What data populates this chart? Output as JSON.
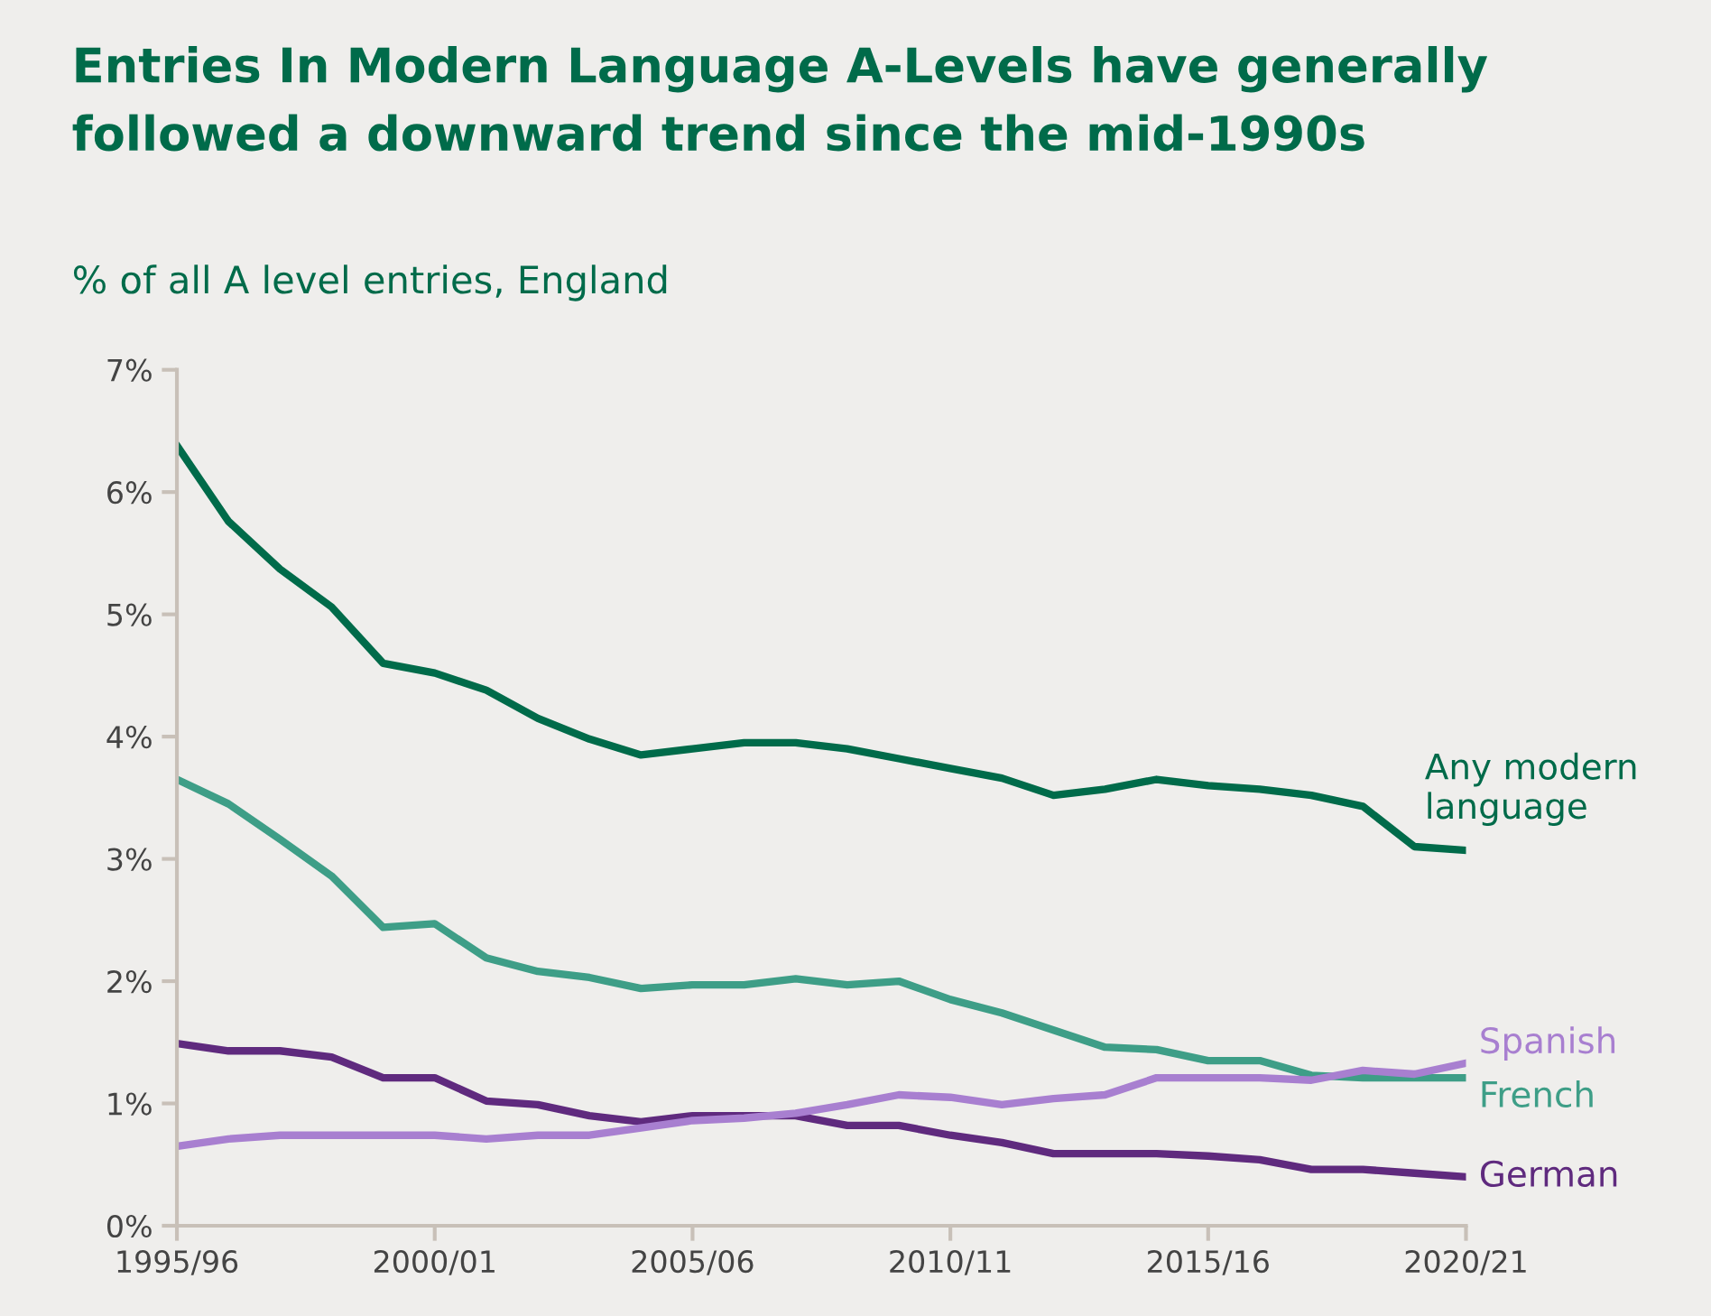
{
  "chart_data": {
    "type": "line",
    "title": "Entries In Modern Language A-Levels have generally followed a downward trend since the mid-1990s",
    "subtitle": "% of all A level entries, England",
    "categories": [
      "1995/96",
      null,
      null,
      null,
      null,
      "2000/01",
      null,
      null,
      null,
      null,
      "2005/06",
      null,
      null,
      null,
      null,
      "2010/11",
      null,
      null,
      null,
      null,
      "2015/16",
      null,
      null,
      null,
      null,
      "2020/21"
    ],
    "series": [
      {
        "name": "Any modern\nlanguage",
        "color": "#006b4a",
        "values": [
          6.38,
          5.76,
          5.37,
          5.06,
          4.6,
          4.52,
          4.38,
          4.15,
          3.98,
          3.85,
          3.9,
          3.95,
          3.95,
          3.9,
          3.82,
          3.74,
          3.66,
          3.52,
          3.57,
          3.65,
          3.6,
          3.57,
          3.52,
          3.43,
          3.1,
          3.07
        ]
      },
      {
        "name": "French",
        "color": "#3e9e87",
        "values": [
          3.65,
          3.45,
          3.16,
          2.86,
          2.44,
          2.47,
          2.19,
          2.08,
          2.03,
          1.94,
          1.97,
          1.97,
          2.02,
          1.97,
          2.0,
          1.85,
          1.74,
          1.6,
          1.46,
          1.44,
          1.35,
          1.35,
          1.23,
          1.21,
          1.21,
          1.21
        ]
      },
      {
        "name": "German",
        "color": "#5f2a7e",
        "values": [
          1.49,
          1.43,
          1.43,
          1.38,
          1.21,
          1.21,
          1.02,
          0.99,
          0.9,
          0.85,
          0.9,
          0.9,
          0.9,
          0.82,
          0.82,
          0.74,
          0.68,
          0.59,
          0.59,
          0.59,
          0.57,
          0.54,
          0.46,
          0.46,
          0.43,
          0.4
        ]
      },
      {
        "name": "Spanish",
        "color": "#a87fd0",
        "values": [
          0.65,
          0.71,
          0.74,
          0.74,
          0.74,
          0.74,
          0.71,
          0.74,
          0.74,
          0.8,
          0.86,
          0.88,
          0.92,
          0.99,
          1.07,
          1.05,
          0.99,
          1.04,
          1.07,
          1.21,
          1.21,
          1.21,
          1.19,
          1.27,
          1.24,
          1.33
        ]
      }
    ],
    "ylim": [
      0,
      7
    ],
    "yticks": [
      {
        "value": 0,
        "label": "0%"
      },
      {
        "value": 1,
        "label": "1%"
      },
      {
        "value": 2,
        "label": "2%"
      },
      {
        "value": 3,
        "label": "3%"
      },
      {
        "value": 4,
        "label": "4%"
      },
      {
        "value": 5,
        "label": "5%"
      },
      {
        "value": 6,
        "label": "6%"
      },
      {
        "value": 7,
        "label": "7%"
      }
    ],
    "grid": false,
    "legend": false,
    "marker": "none",
    "line_style": "solid"
  }
}
